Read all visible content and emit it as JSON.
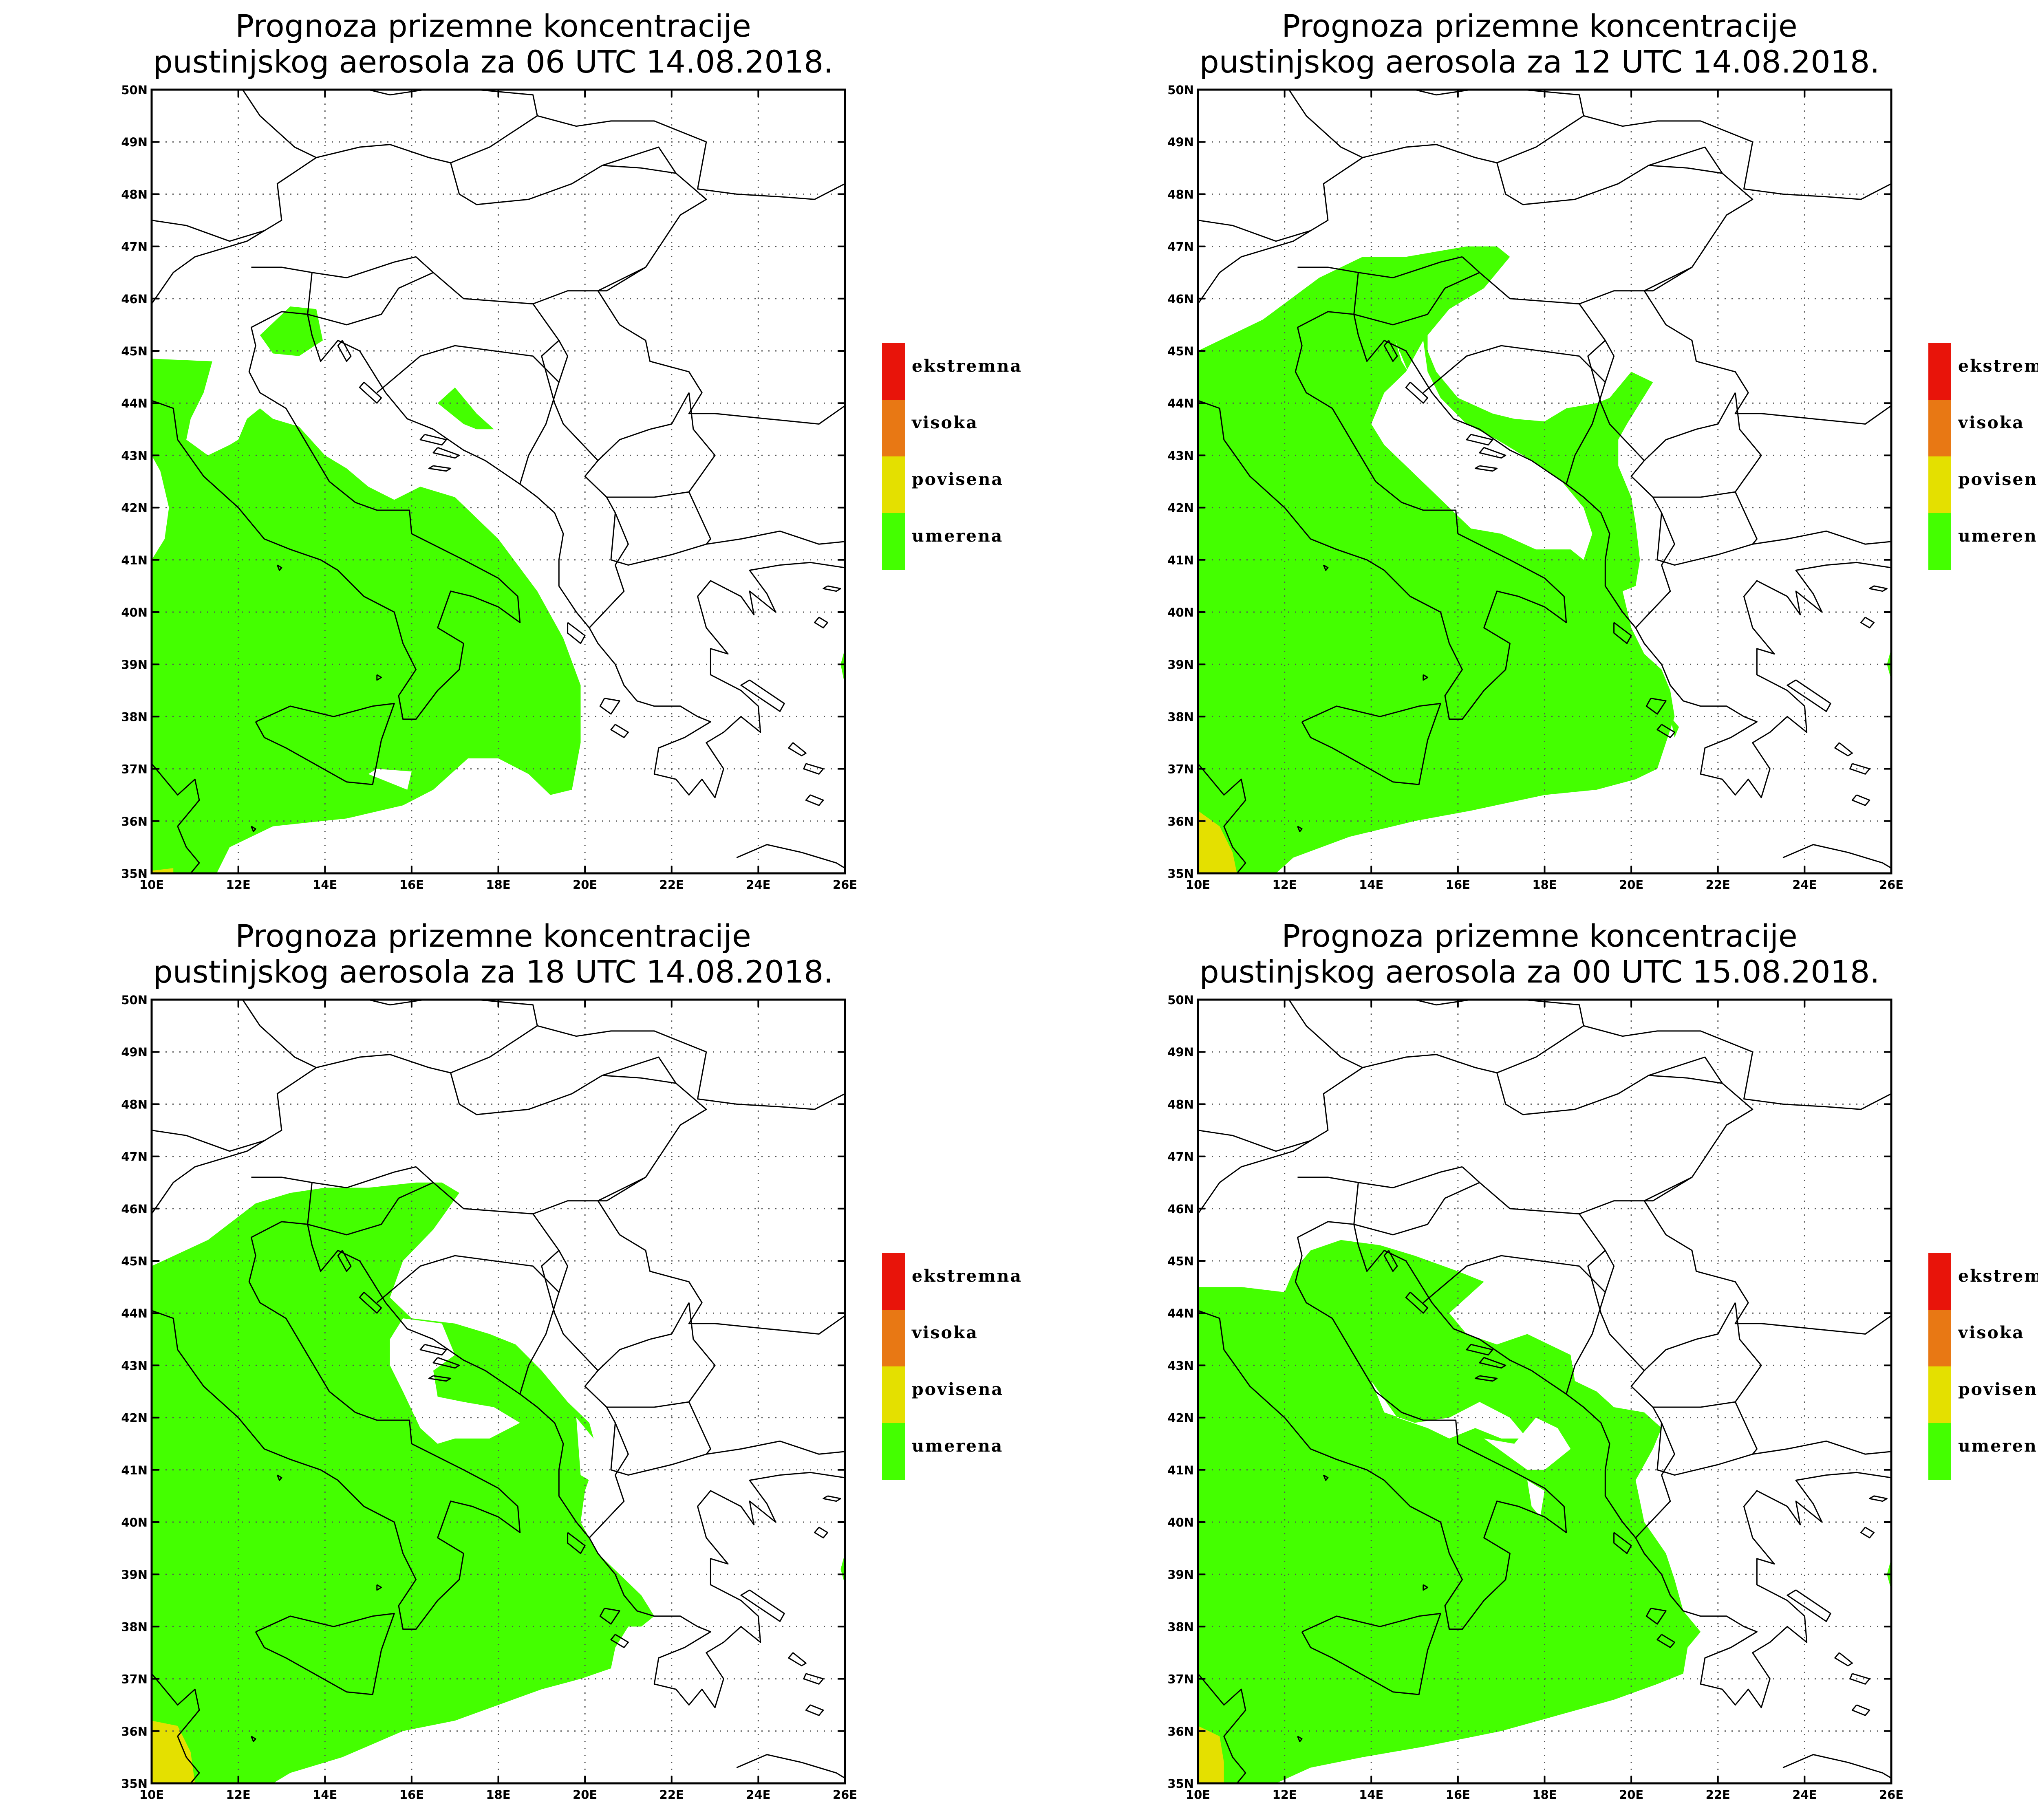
{
  "panels": [
    {
      "title_line1": "Prognoza prizemne koncentracije",
      "title_line2": "pustinjskog aerosola za 06 UTC 14.08.2018.",
      "hour": "06",
      "date": "14.08.2018."
    },
    {
      "title_line1": "Prognoza prizemne koncentracije",
      "title_line2": "pustinjskog aerosola za 12 UTC 14.08.2018.",
      "hour": "12",
      "date": "14.08.2018."
    },
    {
      "title_line1": "Prognoza prizemne koncentracije",
      "title_line2": "pustinjskog aerosola za 18 UTC 14.08.2018.",
      "hour": "18",
      "date": "14.08.2018."
    },
    {
      "title_line1": "Prognoza prizemne koncentracije",
      "title_line2": "pustinjskog aerosola za 00 UTC 15.08.2018.",
      "hour": "00",
      "date": "15.08.2018."
    }
  ],
  "map": {
    "lon_ticks": [
      "10E",
      "12E",
      "14E",
      "16E",
      "18E",
      "20E",
      "22E",
      "24E",
      "26E"
    ],
    "lat_ticks": [
      "50N",
      "49N",
      "48N",
      "47N",
      "46N",
      "45N",
      "44N",
      "43N",
      "42N",
      "41N",
      "40N",
      "39N",
      "38N",
      "37N",
      "36N",
      "35N"
    ],
    "lon_range": [
      10,
      26
    ],
    "lat_range": [
      35,
      50
    ],
    "grid": "dotted, every 2 degrees longitude and 1 degree latitude"
  },
  "legend": [
    {
      "label": "ekstremna",
      "color": "#e8140a"
    },
    {
      "label": "visoka",
      "color": "#e87814"
    },
    {
      "label": "povisena",
      "color": "#e4e000"
    },
    {
      "label": "umerena",
      "color": "#44ff00"
    }
  ],
  "colors": {
    "umerena": "#44ff00",
    "povisena": "#e4e000",
    "coast": "#000000"
  }
}
